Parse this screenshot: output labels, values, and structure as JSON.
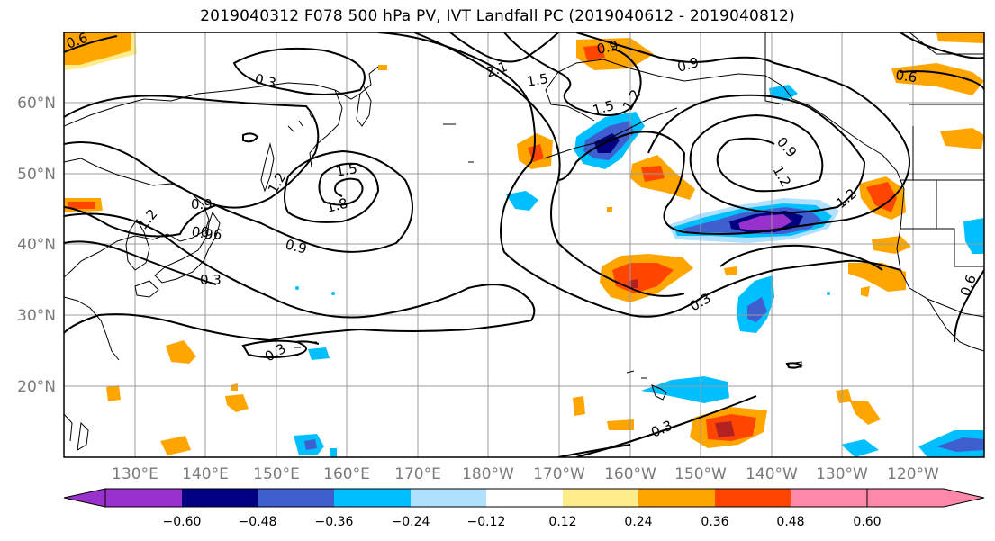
{
  "title": "2019040312 F078 500 hPa PV, IVT Landfall PC (2019040612 - 2019040812)",
  "map": {
    "lon_ticks": [
      "130°E",
      "140°E",
      "150°E",
      "160°E",
      "170°E",
      "180°W",
      "170°W",
      "160°W",
      "150°W",
      "140°W",
      "130°W",
      "120°W"
    ],
    "lat_ticks": [
      "60°N",
      "50°N",
      "40°N",
      "30°N",
      "20°N"
    ],
    "contour_labels": [
      "0.6",
      "0.3",
      "0.9",
      "1.5",
      "2.1",
      "1.5",
      "0.9",
      "1.2",
      "0.9",
      "1.2",
      "1.2",
      "0.9",
      "1.8",
      "1.5",
      "1.2",
      "1.2",
      "0.9",
      "0.6",
      "0.3",
      "0.9",
      "0.6",
      "0.3",
      "0.3",
      "0.3",
      "0.6"
    ]
  },
  "colorbar": {
    "ticks": [
      "−0.60",
      "−0.48",
      "−0.36",
      "−0.24",
      "−0.12",
      "0.12",
      "0.24",
      "0.36",
      "0.48",
      "0.60"
    ],
    "colors": [
      "#9932cc",
      "#000080",
      "#3f5fcf",
      "#00bfff",
      "#b0e0ff",
      "#ffffff",
      "#ffec8b",
      "#ffa500",
      "#ff4500",
      "#b22222",
      "#ff88aa"
    ]
  }
}
